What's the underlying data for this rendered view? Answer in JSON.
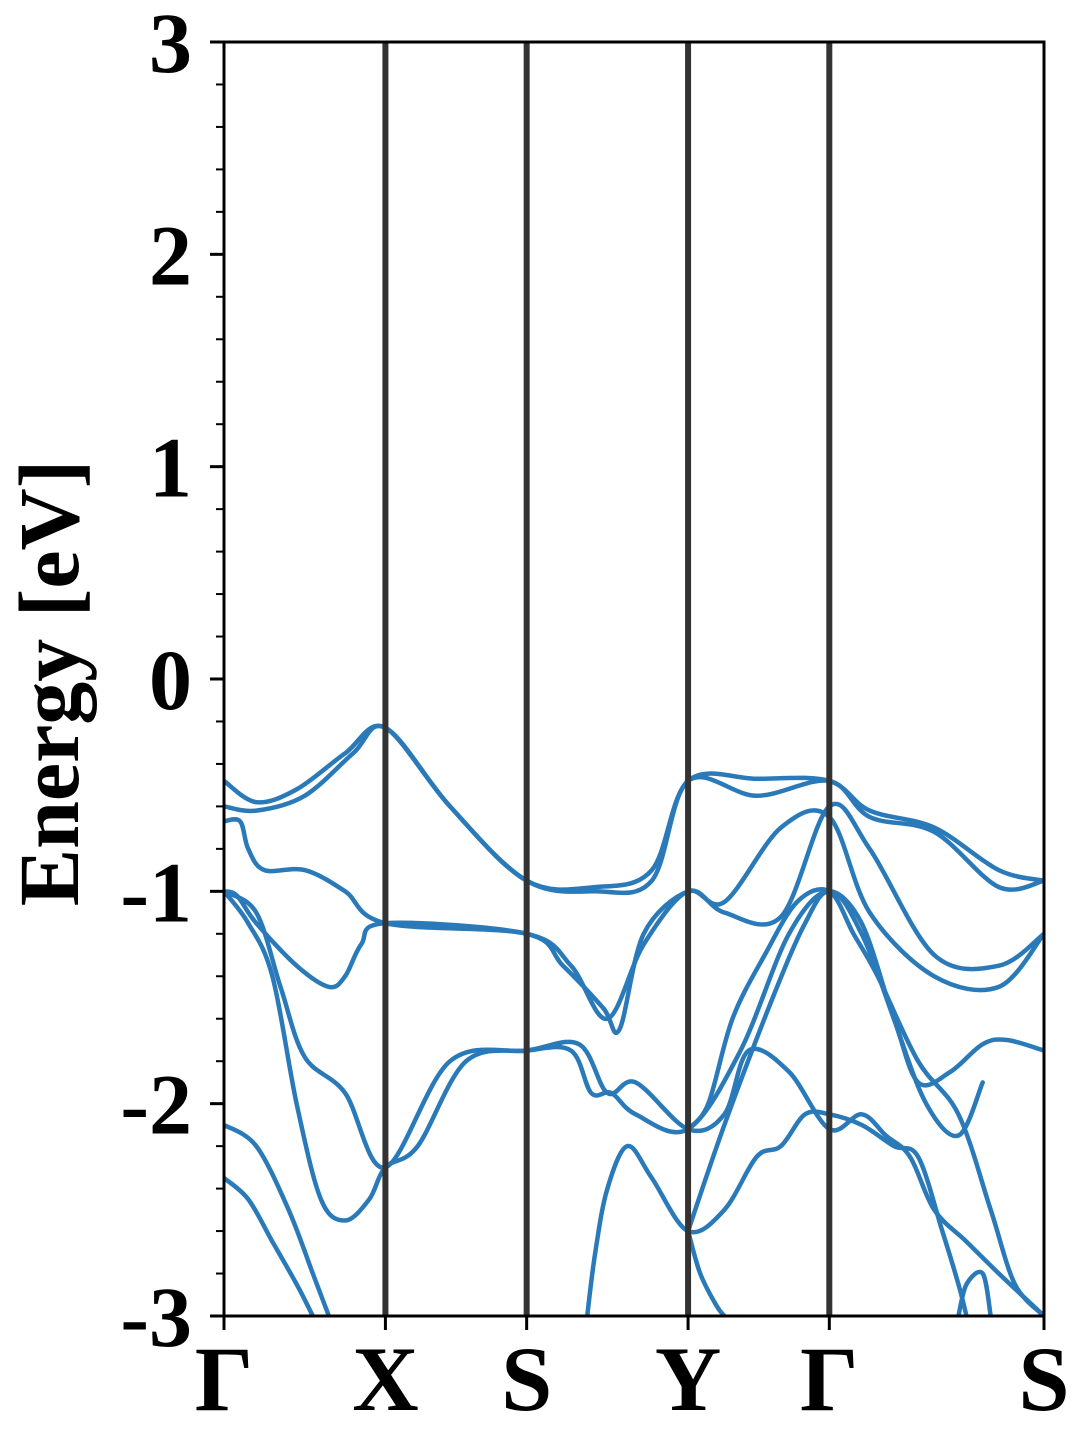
{
  "chart_data": {
    "type": "line",
    "title": "",
    "xlabel": "",
    "ylabel": "Energy [eV]",
    "ylim": [
      -3,
      3
    ],
    "grid": false,
    "legend": "none",
    "yticks": [
      {
        "value": 3,
        "label": "3"
      },
      {
        "value": 2,
        "label": "2"
      },
      {
        "value": 1,
        "label": "1"
      },
      {
        "value": 0,
        "label": "0"
      },
      {
        "value": -1,
        "label": "-1"
      },
      {
        "value": -2,
        "label": "-2"
      },
      {
        "value": -3,
        "label": "-3"
      }
    ],
    "yminor_step": 0.2,
    "kpath": [
      {
        "label": "Γ",
        "position": 0.0
      },
      {
        "label": "X",
        "position": 1.0
      },
      {
        "label": "S",
        "position": 1.875
      },
      {
        "label": "Y",
        "position": 2.875
      },
      {
        "label": "Γ",
        "position": 3.75
      },
      {
        "label": "S",
        "position": 5.08
      }
    ],
    "band_color": "#2a7ab9",
    "separator_color": "#333333",
    "bands": [
      {
        "x": [
          0,
          0.2,
          0.45,
          0.75,
          1.0,
          1.4,
          1.875,
          2.3,
          2.65,
          2.875,
          3.3,
          3.75,
          4.0,
          4.4,
          4.8,
          5.08
        ],
        "y": [
          -0.48,
          -0.58,
          -0.52,
          -0.35,
          -0.23,
          -0.6,
          -0.95,
          -0.98,
          -0.9,
          -0.48,
          -0.47,
          -0.48,
          -0.62,
          -0.7,
          -0.9,
          -0.95
        ]
      },
      {
        "x": [
          0,
          0.2,
          0.5,
          0.8,
          1.0,
          1.4,
          1.875,
          2.3,
          2.65,
          2.875,
          3.3,
          3.75,
          4.0,
          4.4,
          4.8,
          5.08
        ],
        "y": [
          -0.6,
          -0.62,
          -0.55,
          -0.35,
          -0.23,
          -0.6,
          -0.95,
          -1.0,
          -0.95,
          -0.48,
          -0.55,
          -0.48,
          -0.65,
          -0.72,
          -0.98,
          -0.95
        ]
      },
      {
        "x": [
          0,
          0.1,
          0.15,
          0.25,
          0.5,
          0.75,
          1.0,
          1.875,
          2.1,
          2.35,
          2.45,
          2.6,
          2.875,
          3.1,
          3.45,
          3.75,
          4.0,
          4.4,
          4.8,
          5.08
        ],
        "y": [
          -0.67,
          -0.67,
          -0.8,
          -0.9,
          -0.9,
          -1.0,
          -1.15,
          -1.2,
          -1.35,
          -1.55,
          -1.65,
          -1.2,
          -1.0,
          -1.05,
          -0.7,
          -0.65,
          -1.1,
          -1.4,
          -1.45,
          -1.2
        ]
      },
      {
        "x": [
          0,
          0.08,
          0.2,
          0.45,
          0.65,
          0.75,
          0.85,
          1.0,
          1.875,
          2.15,
          2.375,
          2.6,
          2.875,
          3.1,
          3.45,
          3.75,
          4.0,
          4.4,
          4.8,
          5.08
        ],
        "y": [
          -1.0,
          -1.02,
          -1.15,
          -1.35,
          -1.45,
          -1.4,
          -1.25,
          -1.15,
          -1.2,
          -1.35,
          -1.6,
          -1.25,
          -1.0,
          -1.1,
          -1.12,
          -0.6,
          -0.8,
          -1.3,
          -1.35,
          -1.2
        ]
      },
      {
        "x": [
          0,
          0.2,
          0.35,
          0.5,
          0.75,
          1.0,
          1.4,
          1.875,
          2.2,
          2.375,
          2.55,
          2.875,
          3.1,
          3.25,
          3.5,
          3.75,
          3.95,
          4.1,
          4.25,
          4.4,
          4.6,
          4.8,
          5.08
        ],
        "y": [
          -1.0,
          -1.1,
          -1.45,
          -1.78,
          -1.95,
          -2.3,
          -1.8,
          -1.75,
          -1.72,
          -1.95,
          -1.9,
          -2.12,
          -2.05,
          -1.75,
          -1.85,
          -2.12,
          -2.05,
          -2.15,
          -2.25,
          -2.5,
          -2.65,
          -2.8,
          -3.0
        ]
      },
      {
        "x": [
          0,
          0.15,
          0.3,
          0.45,
          0.6,
          0.75,
          0.9,
          1.0,
          1.2,
          1.5,
          1.875,
          2.15,
          2.275,
          2.4,
          2.55,
          2.875,
          3.2,
          3.5,
          3.75,
          3.95,
          4.15,
          4.3,
          4.5,
          4.7,
          4.85,
          5.08
        ],
        "y": [
          -1.0,
          -1.15,
          -1.4,
          -2.0,
          -2.45,
          -2.55,
          -2.45,
          -2.3,
          -2.2,
          -1.8,
          -1.75,
          -1.75,
          -1.95,
          -1.95,
          -2.05,
          -2.12,
          -1.75,
          -1.2,
          -1.0,
          -1.2,
          -1.6,
          -1.9,
          -1.85,
          -1.72,
          -1.7,
          -1.75
        ]
      },
      {
        "x": [
          0,
          0.2,
          0.4,
          0.55,
          0.65
        ],
        "y": [
          -2.1,
          -2.2,
          -2.5,
          -2.8,
          -3.0
        ]
      },
      {
        "x": [
          0,
          0.15,
          0.3,
          0.45,
          0.55
        ],
        "y": [
          -2.35,
          -2.45,
          -2.65,
          -2.85,
          -3.0
        ]
      },
      {
        "x": [
          2.25,
          2.3,
          2.375,
          2.5,
          2.65,
          2.875,
          3.1,
          3.3,
          3.45,
          3.6,
          3.75,
          3.95,
          4.15,
          4.3,
          4.45,
          4.55,
          4.6
        ],
        "y": [
          -3.0,
          -2.7,
          -2.4,
          -2.2,
          -2.35,
          -2.6,
          -2.5,
          -2.25,
          -2.2,
          -2.05,
          -2.05,
          -2.1,
          -2.2,
          -2.25,
          -2.6,
          -2.85,
          -3.0
        ]
      },
      {
        "x": [
          2.875,
          3.1,
          3.4,
          3.6,
          3.75,
          3.95,
          4.15,
          4.35,
          4.55,
          4.7
        ],
        "y": [
          -2.6,
          -2.1,
          -1.5,
          -1.15,
          -1.0,
          -1.15,
          -1.6,
          -2.0,
          -2.15,
          -1.9
        ]
      },
      {
        "x": [
          2.875,
          3.0,
          3.15,
          3.35,
          3.55,
          3.75,
          3.9,
          4.05,
          4.3,
          4.55,
          4.75,
          4.9,
          5.08
        ],
        "y": [
          -2.12,
          -2.0,
          -1.6,
          -1.3,
          -1.05,
          -1.0,
          -1.2,
          -1.4,
          -1.8,
          -2.05,
          -2.5,
          -2.85,
          -3.0
        ]
      },
      {
        "x": [
          2.875,
          2.95,
          3.05,
          3.1
        ],
        "y": [
          -2.6,
          -2.8,
          -2.95,
          -3.0
        ]
      },
      {
        "x": [
          4.55,
          4.6,
          4.7,
          4.75
        ],
        "y": [
          -3.0,
          -2.85,
          -2.8,
          -3.0
        ]
      }
    ]
  }
}
